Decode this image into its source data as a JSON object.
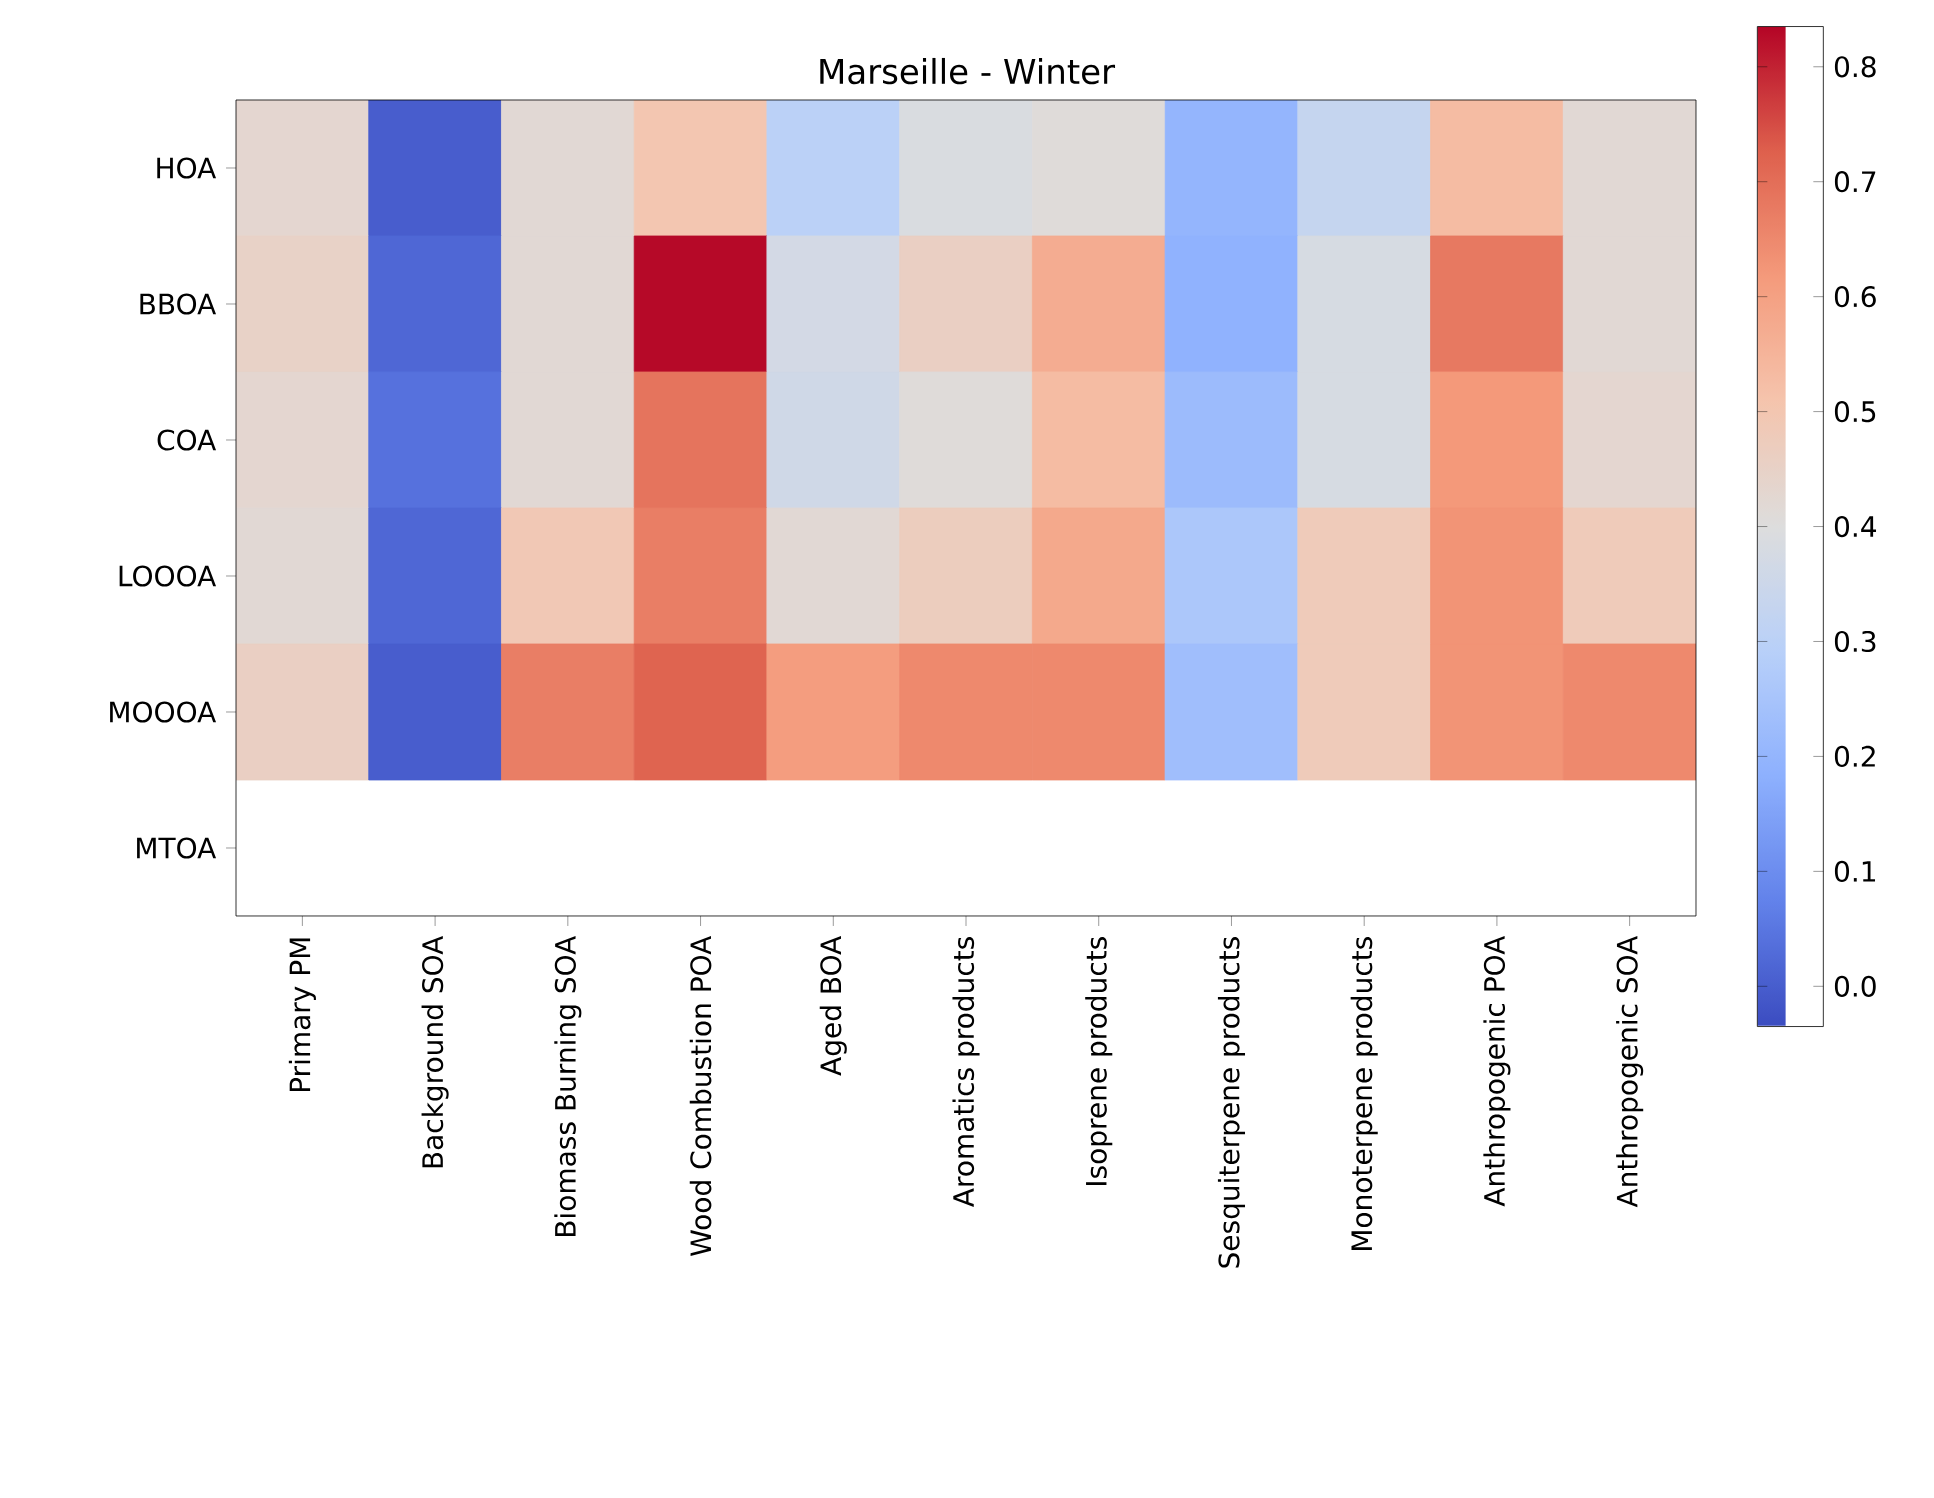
{
  "chart_data": {
    "type": "heatmap",
    "title": "Marseille - Winter",
    "categories": [
      "Primary PM",
      "Background SOA",
      "Biomass Burning SOA",
      "Wood Combustion POA",
      "Aged BOA",
      "Aromatics products",
      "Isoprene products",
      "Sesquiterpene products",
      "Monoterpene products",
      "Anthropogenic POA",
      "Anthropogenic SOA"
    ],
    "y_categories": [
      "HOA",
      "BBOA",
      "COA",
      "LOOOA",
      "MOOOA",
      "MTOA"
    ],
    "cells": [
      [
        0.43,
        0.0,
        0.42,
        0.5,
        0.3,
        0.39,
        0.41,
        0.2,
        0.33,
        0.53,
        0.42
      ],
      [
        0.45,
        0.02,
        0.42,
        0.83,
        0.37,
        0.46,
        0.57,
        0.19,
        0.38,
        0.68,
        0.42
      ],
      [
        0.43,
        0.04,
        0.42,
        0.69,
        0.36,
        0.41,
        0.53,
        0.22,
        0.38,
        0.62,
        0.43
      ],
      [
        0.42,
        0.02,
        0.49,
        0.67,
        0.42,
        0.47,
        0.58,
        0.26,
        0.48,
        0.63,
        0.48
      ],
      [
        0.46,
        0.0,
        0.67,
        0.72,
        0.61,
        0.65,
        0.65,
        0.23,
        0.48,
        0.63,
        0.65
      ],
      [
        null,
        null,
        null,
        null,
        null,
        null,
        null,
        null,
        null,
        null,
        null
      ]
    ],
    "clim": [
      -0.035,
      0.835
    ],
    "cticks": [
      {
        "value": 0,
        "label": "0.0"
      },
      {
        "value": 0.1,
        "label": "0.1"
      },
      {
        "value": 0.2,
        "label": "0.2"
      },
      {
        "value": 0.3,
        "label": "0.3"
      },
      {
        "value": 0.4,
        "label": "0.4"
      },
      {
        "value": 0.5,
        "label": "0.5"
      },
      {
        "value": 0.6,
        "label": "0.6"
      },
      {
        "value": 0.7,
        "label": "0.7"
      },
      {
        "value": 0.8,
        "label": "0.8"
      }
    ]
  }
}
